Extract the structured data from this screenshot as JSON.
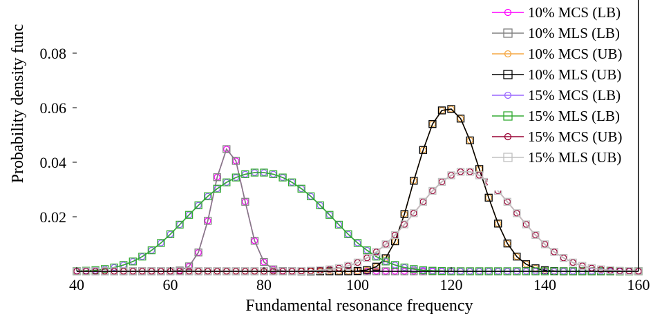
{
  "chart_data": {
    "type": "line",
    "title": "",
    "xlabel": "Fundamental resonance frequency",
    "ylabel": "Probability density func",
    "xlim": [
      40,
      160
    ],
    "ylim": [
      0,
      0.1
    ],
    "xticks": [
      40,
      60,
      80,
      100,
      120,
      140,
      160
    ],
    "yticks": [
      0.02,
      0.04,
      0.06,
      0.08
    ],
    "xtick_labels": [
      "40",
      "60",
      "80",
      "100",
      "120",
      "140",
      "160"
    ],
    "ytick_labels": [
      "0.02",
      "0.04",
      "0.06",
      "0.08"
    ],
    "grid": false,
    "legend_position": "top-right",
    "x": [
      40,
      42,
      44,
      46,
      48,
      50,
      52,
      54,
      56,
      58,
      60,
      62,
      64,
      66,
      68,
      70,
      72,
      74,
      76,
      78,
      80,
      82,
      84,
      86,
      88,
      90,
      92,
      94,
      96,
      98,
      100,
      102,
      104,
      106,
      108,
      110,
      112,
      114,
      116,
      118,
      120,
      122,
      124,
      126,
      128,
      130,
      132,
      134,
      136,
      138,
      140,
      142,
      144,
      146,
      148,
      150,
      152,
      154,
      156,
      158,
      160
    ],
    "series": [
      {
        "name": "10% MCS (LB)",
        "color": "#ff00ff",
        "marker": "circle",
        "values": [
          0,
          0,
          0,
          0,
          0,
          0,
          0,
          0,
          0,
          0,
          0,
          0.0003,
          0.0018,
          0.0069,
          0.0185,
          0.0345,
          0.0448,
          0.0405,
          0.0255,
          0.0112,
          0.0034,
          0.0007,
          0.0001,
          0,
          0,
          0,
          0,
          0,
          0,
          0,
          0,
          0,
          0,
          0,
          0,
          0,
          0,
          0,
          0,
          0,
          0,
          0,
          0,
          0,
          0,
          0,
          0,
          0,
          0,
          0,
          0,
          0,
          0,
          0,
          0,
          0,
          0,
          0,
          0,
          0,
          0
        ]
      },
      {
        "name": "10% MLS (LB)",
        "color": "#808080",
        "marker": "square",
        "values": [
          0,
          0,
          0,
          0,
          0,
          0,
          0,
          0,
          0,
          0,
          0,
          0.0003,
          0.0018,
          0.0069,
          0.0185,
          0.0345,
          0.0448,
          0.0405,
          0.0255,
          0.0112,
          0.0034,
          0.0007,
          0.0001,
          0,
          0,
          0,
          0,
          0,
          0,
          0,
          0,
          0,
          0,
          0,
          0,
          0,
          0,
          0,
          0,
          0,
          0,
          0,
          0,
          0,
          0,
          0,
          0,
          0,
          0,
          0,
          0,
          0,
          0,
          0,
          0,
          0,
          0,
          0,
          0,
          0,
          0
        ]
      },
      {
        "name": "10% MCS (UB)",
        "color": "#f5a742",
        "marker": "circle",
        "values": [
          0,
          0,
          0,
          0,
          0,
          0,
          0,
          0,
          0,
          0,
          0,
          0,
          0,
          0,
          0,
          0,
          0,
          0,
          0,
          0,
          0,
          0,
          0,
          0,
          0,
          0,
          0,
          0,
          0,
          0,
          0.0001,
          0.0005,
          0.0017,
          0.0048,
          0.011,
          0.021,
          0.0332,
          0.0445,
          0.054,
          0.059,
          0.0595,
          0.056,
          0.048,
          0.0375,
          0.027,
          0.0175,
          0.0102,
          0.0054,
          0.0026,
          0.0011,
          0.0004,
          0.0001,
          0,
          0,
          0,
          0,
          0,
          0,
          0,
          0,
          0
        ]
      },
      {
        "name": "10% MLS (UB)",
        "color": "#000000",
        "marker": "square",
        "values": [
          0,
          0,
          0,
          0,
          0,
          0,
          0,
          0,
          0,
          0,
          0,
          0,
          0,
          0,
          0,
          0,
          0,
          0,
          0,
          0,
          0,
          0,
          0,
          0,
          0,
          0,
          0,
          0,
          0,
          0,
          0.0001,
          0.0005,
          0.0017,
          0.0048,
          0.011,
          0.021,
          0.0332,
          0.0445,
          0.054,
          0.059,
          0.0595,
          0.056,
          0.048,
          0.0375,
          0.027,
          0.0175,
          0.0102,
          0.0054,
          0.0026,
          0.0011,
          0.0004,
          0.0001,
          0,
          0,
          0,
          0,
          0,
          0,
          0,
          0,
          0
        ]
      },
      {
        "name": "15% MCS (LB)",
        "color": "#9966ff",
        "marker": "circle",
        "values": [
          0.0001,
          0.0002,
          0.0004,
          0.0008,
          0.0014,
          0.0023,
          0.0036,
          0.0054,
          0.0077,
          0.0104,
          0.0136,
          0.0171,
          0.0207,
          0.0242,
          0.0275,
          0.0303,
          0.0326,
          0.0344,
          0.0356,
          0.0362,
          0.0362,
          0.0356,
          0.0344,
          0.0326,
          0.0303,
          0.0275,
          0.0242,
          0.0207,
          0.0171,
          0.0136,
          0.0104,
          0.0077,
          0.0054,
          0.0036,
          0.0023,
          0.0014,
          0.0008,
          0.0004,
          0.0002,
          0.0001,
          0,
          0,
          0,
          0,
          0,
          0,
          0,
          0,
          0,
          0,
          0,
          0,
          0,
          0,
          0,
          0,
          0,
          0,
          0,
          0,
          0
        ]
      },
      {
        "name": "15% MLS (LB)",
        "color": "#33aa33",
        "marker": "square",
        "values": [
          0.0001,
          0.0002,
          0.0004,
          0.0008,
          0.0014,
          0.0023,
          0.0036,
          0.0054,
          0.0077,
          0.0104,
          0.0136,
          0.0171,
          0.0207,
          0.0242,
          0.0275,
          0.0303,
          0.0326,
          0.0344,
          0.0356,
          0.0362,
          0.0362,
          0.0356,
          0.0344,
          0.0326,
          0.0303,
          0.0275,
          0.0242,
          0.0207,
          0.0171,
          0.0136,
          0.0104,
          0.0077,
          0.0054,
          0.0036,
          0.0023,
          0.0014,
          0.0008,
          0.0004,
          0.0002,
          0.0001,
          0,
          0,
          0,
          0,
          0,
          0,
          0,
          0,
          0,
          0,
          0,
          0,
          0,
          0,
          0,
          0,
          0,
          0,
          0,
          0,
          0
        ]
      },
      {
        "name": "15% MCS (UB)",
        "color": "#990033",
        "marker": "circle",
        "values": [
          0,
          0,
          0,
          0,
          0,
          0,
          0,
          0,
          0,
          0,
          0,
          0,
          0,
          0,
          0,
          0,
          0,
          0,
          0,
          0,
          0,
          0,
          0,
          0,
          0.0001,
          0.0002,
          0.0004,
          0.0007,
          0.0012,
          0.002,
          0.0032,
          0.0049,
          0.0071,
          0.0099,
          0.0133,
          0.0172,
          0.0213,
          0.0255,
          0.0295,
          0.0328,
          0.0352,
          0.0365,
          0.0365,
          0.0352,
          0.0328,
          0.0295,
          0.0255,
          0.0213,
          0.0172,
          0.0133,
          0.0099,
          0.0071,
          0.0049,
          0.0032,
          0.002,
          0.0012,
          0.0007,
          0.0004,
          0.0002,
          0.0001,
          0
        ]
      },
      {
        "name": "15% MLS (UB)",
        "color": "#c0c0c0",
        "marker": "square",
        "values": [
          0,
          0,
          0,
          0,
          0,
          0,
          0,
          0,
          0,
          0,
          0,
          0,
          0,
          0,
          0,
          0,
          0,
          0,
          0,
          0,
          0,
          0,
          0,
          0,
          0.0001,
          0.0002,
          0.0004,
          0.0007,
          0.0012,
          0.002,
          0.0032,
          0.0049,
          0.0071,
          0.0099,
          0.0133,
          0.0172,
          0.0213,
          0.0255,
          0.0295,
          0.0328,
          0.0352,
          0.0365,
          0.0365,
          0.0352,
          0.0328,
          0.0295,
          0.0255,
          0.0213,
          0.0172,
          0.0133,
          0.0099,
          0.0071,
          0.0049,
          0.0032,
          0.002,
          0.0012,
          0.0007,
          0.0004,
          0.0002,
          0.0001,
          0
        ]
      }
    ]
  }
}
